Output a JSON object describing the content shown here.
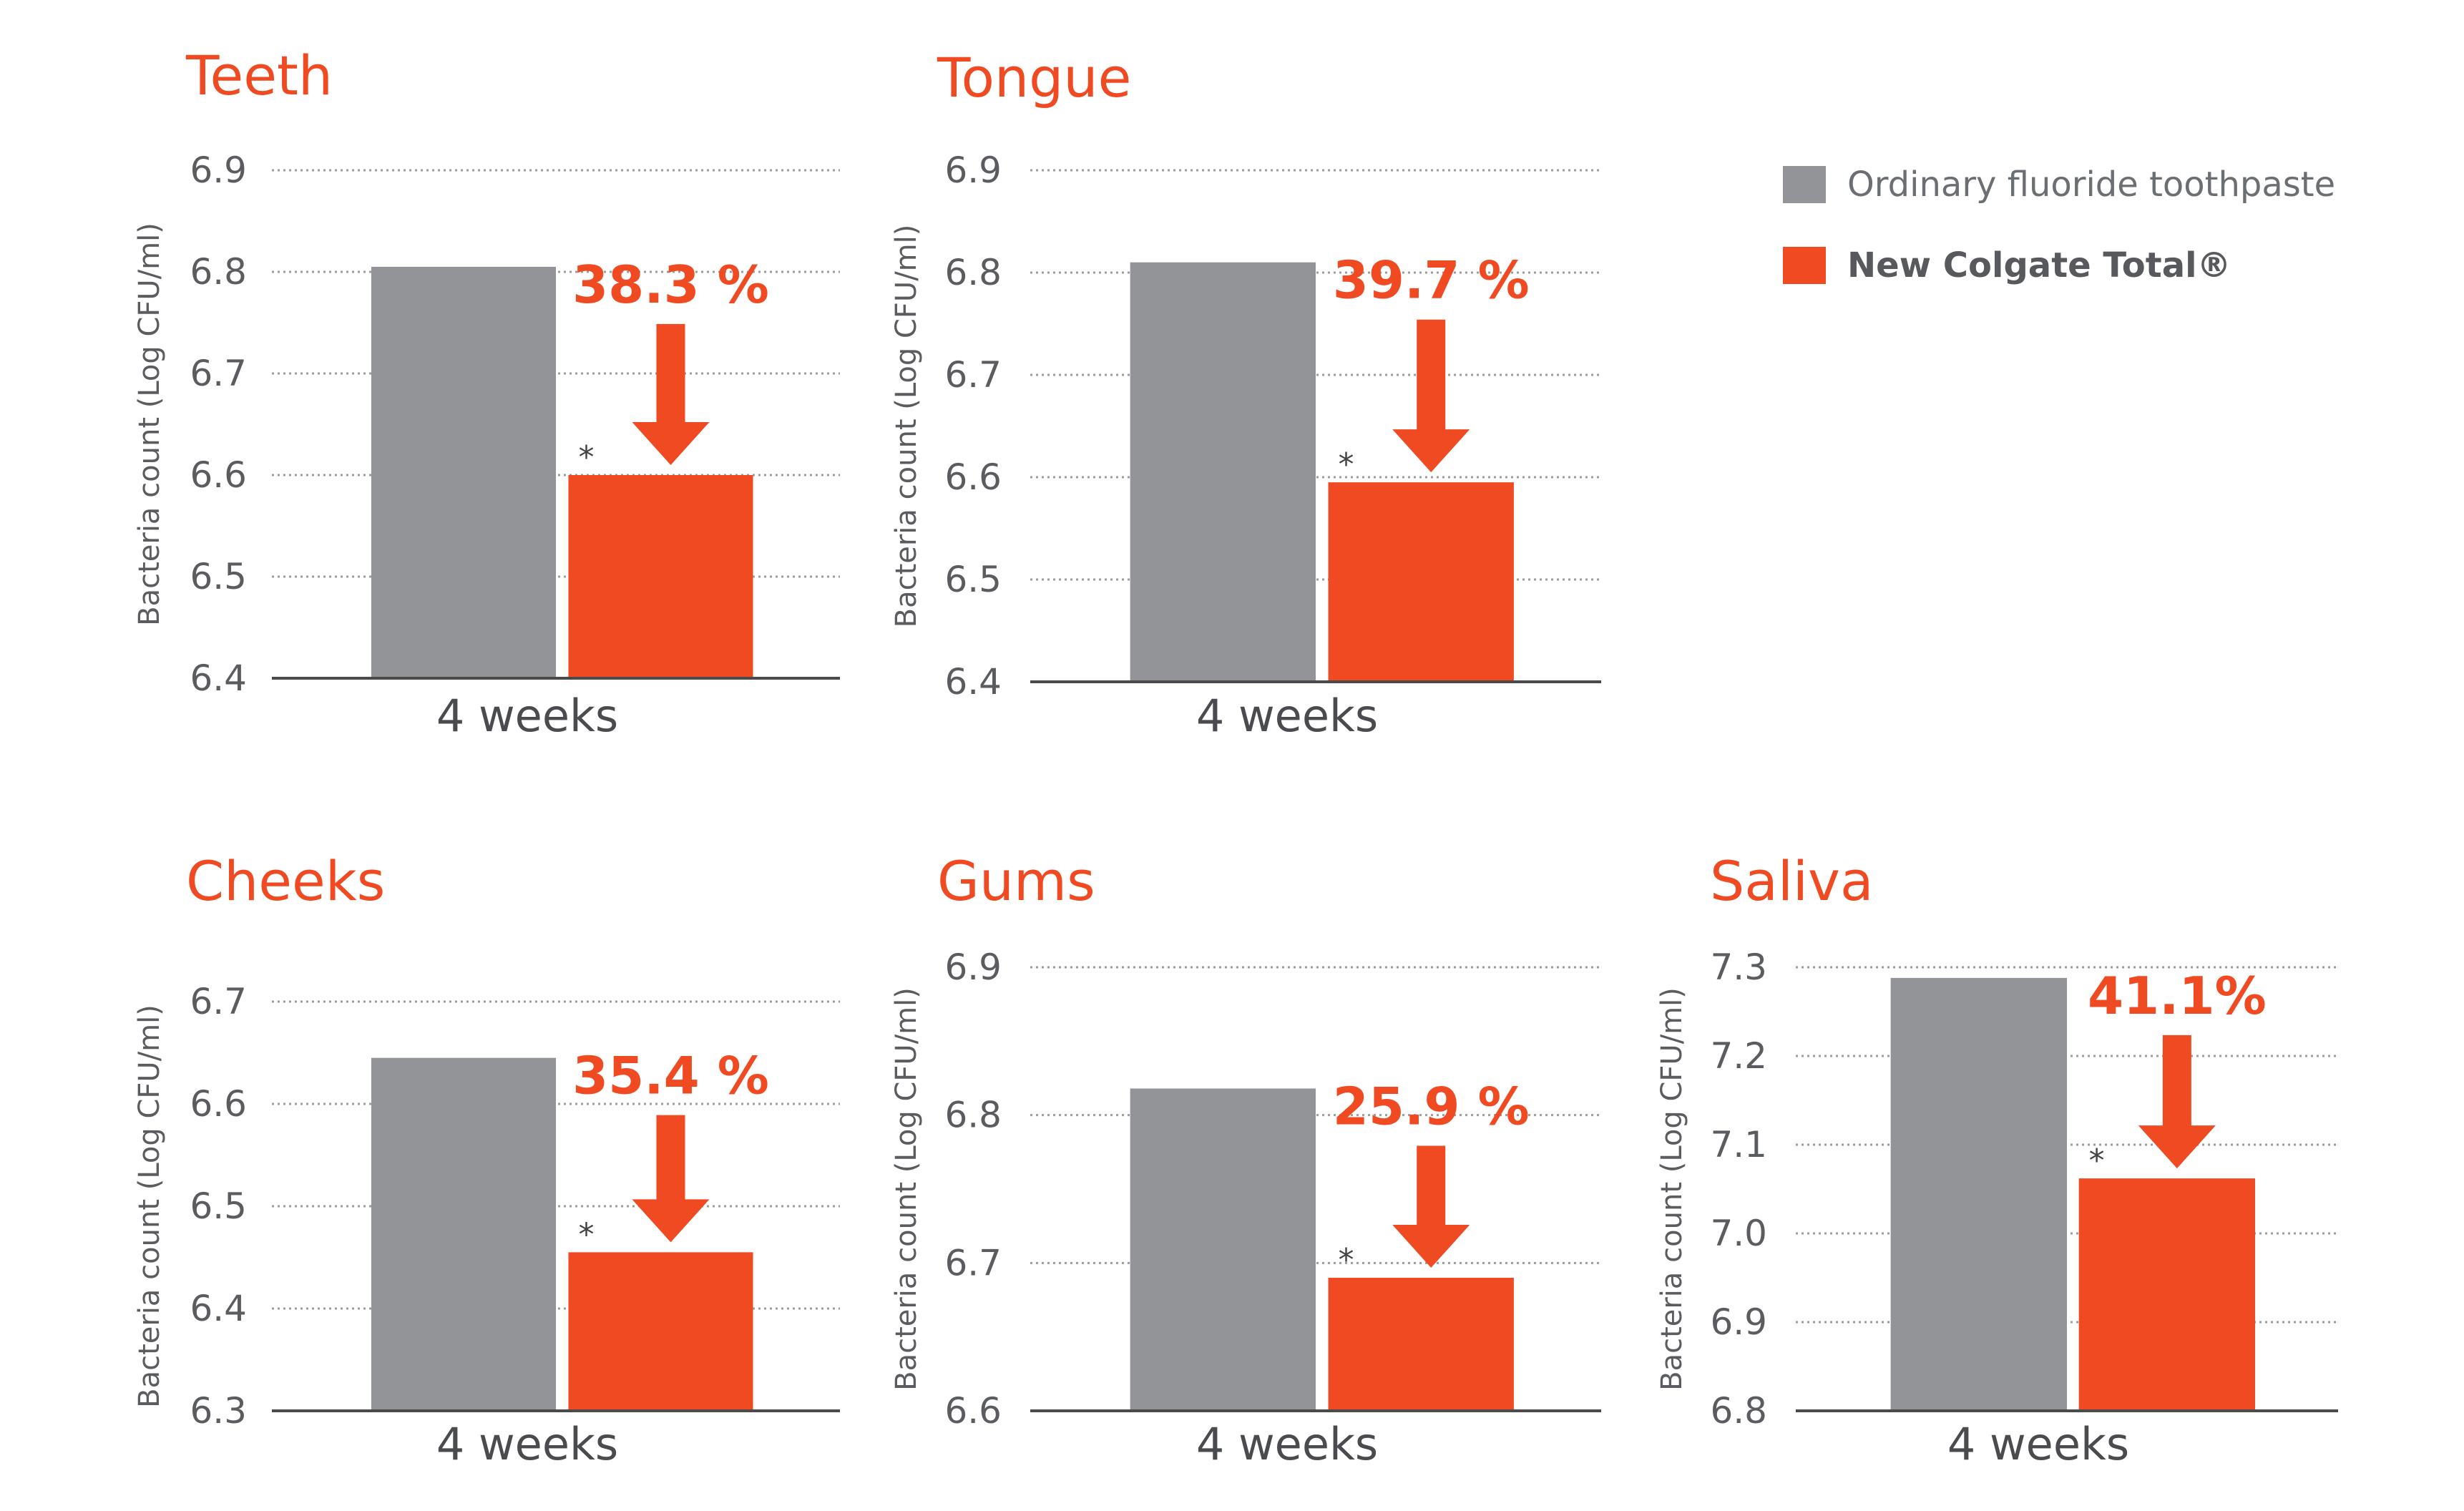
{
  "colors": {
    "ordinary": "#929497",
    "colgate": "#f04a23",
    "title": "#f04a23",
    "text": "#5a5c5f",
    "grid": "#9c9c9c"
  },
  "legend": {
    "items": [
      {
        "label": "Ordinary fluoride toothpaste",
        "color": "#929497",
        "bold": false
      },
      {
        "label": "New Colgate Total®",
        "color": "#f04a23",
        "bold": true
      }
    ]
  },
  "chart_data": [
    {
      "type": "bar",
      "title": "Teeth",
      "ylabel": "Bacteria count (Log CFU/ml)",
      "ylim": [
        6.4,
        6.9
      ],
      "yticks": [
        "6.9",
        "6.8",
        "6.7",
        "6.6",
        "6.5",
        "6.4"
      ],
      "categories": [
        "4 weeks"
      ],
      "series": [
        {
          "name": "Ordinary fluoride toothpaste",
          "values": [
            6.805
          ]
        },
        {
          "name": "New Colgate Total®",
          "values": [
            6.6
          ]
        }
      ],
      "reduction_label": "38.3 %",
      "significance_marker": "*",
      "grid": true
    },
    {
      "type": "bar",
      "title": "Tongue",
      "ylabel": "Bacteria count (Log CFU/ml)",
      "ylim": [
        6.4,
        6.9
      ],
      "yticks": [
        "6.9",
        "6.8",
        "6.7",
        "6.6",
        "6.5",
        "6.4"
      ],
      "categories": [
        "4 weeks"
      ],
      "series": [
        {
          "name": "Ordinary fluoride toothpaste",
          "values": [
            6.81
          ]
        },
        {
          "name": "New Colgate Total®",
          "values": [
            6.595
          ]
        }
      ],
      "reduction_label": "39.7 %",
      "significance_marker": "*",
      "grid": true
    },
    {
      "type": "bar",
      "title": "Cheeks",
      "ylabel": "Bacteria count (Log CFU/ml)",
      "ylim": [
        6.3,
        6.7
      ],
      "yticks": [
        "6.7",
        "6.6",
        "6.5",
        "6.4",
        "6.3"
      ],
      "categories": [
        "4 weeks"
      ],
      "series": [
        {
          "name": "Ordinary fluoride toothpaste",
          "values": [
            6.645
          ]
        },
        {
          "name": "New Colgate Total®",
          "values": [
            6.455
          ]
        }
      ],
      "reduction_label": "35.4 %",
      "significance_marker": "*",
      "grid": true
    },
    {
      "type": "bar",
      "title": "Gums",
      "ylabel": "Bacteria count (Log CFU/ml)",
      "ylim": [
        6.6,
        6.9
      ],
      "yticks": [
        "6.9",
        "6.8",
        "6.7",
        "6.6"
      ],
      "categories": [
        "4 weeks"
      ],
      "series": [
        {
          "name": "Ordinary fluoride toothpaste",
          "values": [
            6.818
          ]
        },
        {
          "name": "New Colgate Total®",
          "values": [
            6.69
          ]
        }
      ],
      "reduction_label": "25.9 %",
      "significance_marker": "*",
      "grid": true
    },
    {
      "type": "bar",
      "title": "Saliva",
      "ylabel": "Bacteria count (Log CFU/ml)",
      "ylim": [
        6.8,
        7.3
      ],
      "yticks": [
        "7.3",
        "7.2",
        "7.1",
        "7.0",
        "6.9",
        "6.8"
      ],
      "categories": [
        "4 weeks"
      ],
      "series": [
        {
          "name": "Ordinary fluoride toothpaste",
          "values": [
            7.288
          ]
        },
        {
          "name": "New Colgate Total®",
          "values": [
            7.062
          ]
        }
      ],
      "reduction_label": "41.1%",
      "significance_marker": "*",
      "grid": true
    }
  ]
}
